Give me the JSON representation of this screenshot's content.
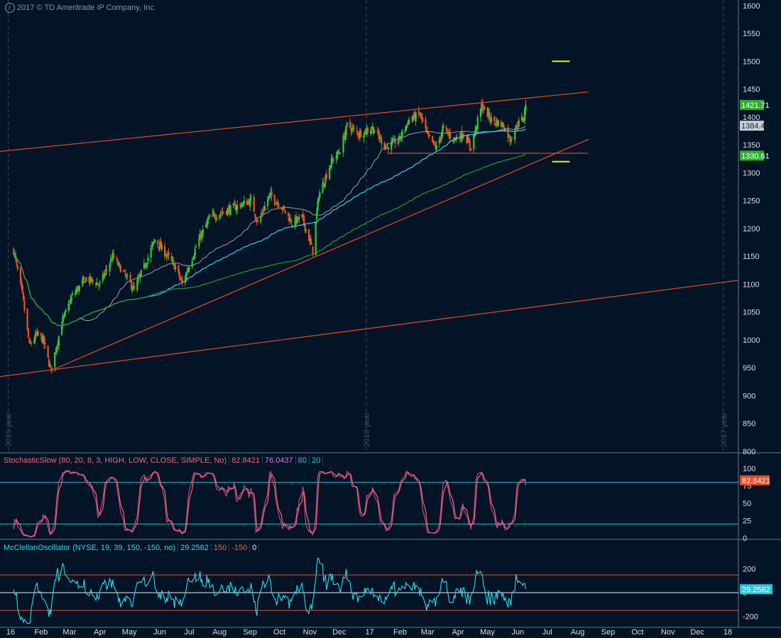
{
  "copyright": "2017 © TD Ameritrade IP Company, Inc.",
  "colors": {
    "background": "#031426",
    "grid": "#3b4a5a",
    "up_candle": "#35c83a",
    "down_candle": "#f0501e",
    "trendline": "#e84a23",
    "yellow_marker": "#f3f000",
    "sma_gray": "#8b8b8b",
    "sma_cyan": "#34d2f0",
    "sma_green": "#2a9d2a",
    "stoch_k": "#e0509a",
    "stoch_d": "#f06a6a",
    "level_cyan": "#2ab8c8",
    "mcclellan": "#38d8ea",
    "level_red": "#e84a23",
    "badge_green": "#2db02d",
    "badge_red": "#e84a23",
    "badge_cyan": "#2ec8dc"
  },
  "x_axis": {
    "labels": [
      "16",
      "Feb",
      "Mar",
      "Apr",
      "May",
      "Jun",
      "Jul",
      "Aug",
      "Sep",
      "Oct",
      "Nov",
      "Dec",
      "17",
      "Feb",
      "Mar",
      "Apr",
      "May",
      "Jun",
      "Jul",
      "Aug",
      "Sep",
      "Oct",
      "Nov",
      "Dec",
      "18"
    ]
  },
  "period_labels": [
    "2015 year",
    "2016 year",
    "2017 year"
  ],
  "price_badges": [
    "1421.71",
    "1384.46",
    "1330.61"
  ],
  "stoch_legend": {
    "name": "StochasticSlow (80, 20, 8, 3, HIGH, LOW, CLOSE, SIMPLE, No)",
    "k": "82.8421",
    "d": "76.0437",
    "ob": "80",
    "os": "20"
  },
  "stoch_badge": "82.8421",
  "mco_legend": {
    "name": "McClellanOscillator (NYSE, 19, 39, 150, -150, no)",
    "value": "29.2562",
    "upper": "150",
    "lower": "-150",
    "zero": "0"
  },
  "mco_badge": "29.2562",
  "chart_data": [
    {
      "type": "candlestick",
      "title": "",
      "xlabel": "",
      "ylabel": "",
      "y_ticks": [
        "1600",
        "1550",
        "1500",
        "1450",
        "1400",
        "1350",
        "1300",
        "1250",
        "1200",
        "1150",
        "1100",
        "1050",
        "1000",
        "950",
        "900",
        "850",
        "800"
      ],
      "ylim": [
        800,
        1610
      ],
      "last_close": 1421.71,
      "close_series": [
        {
          "date": "2016-01-04",
          "value": 1160
        },
        {
          "date": "2016-01-13",
          "value": 1080
        },
        {
          "date": "2016-01-20",
          "value": 990
        },
        {
          "date": "2016-01-28",
          "value": 1010
        },
        {
          "date": "2016-02-03",
          "value": 1000
        },
        {
          "date": "2016-02-11",
          "value": 945
        },
        {
          "date": "2016-02-22",
          "value": 1030
        },
        {
          "date": "2016-03-04",
          "value": 1080
        },
        {
          "date": "2016-03-18",
          "value": 1110
        },
        {
          "date": "2016-04-01",
          "value": 1100
        },
        {
          "date": "2016-04-14",
          "value": 1150
        },
        {
          "date": "2016-04-25",
          "value": 1120
        },
        {
          "date": "2016-05-06",
          "value": 1090
        },
        {
          "date": "2016-05-18",
          "value": 1140
        },
        {
          "date": "2016-05-27",
          "value": 1180
        },
        {
          "date": "2016-06-09",
          "value": 1150
        },
        {
          "date": "2016-06-17",
          "value": 1130
        },
        {
          "date": "2016-06-24",
          "value": 1100
        },
        {
          "date": "2016-06-30",
          "value": 1130
        },
        {
          "date": "2016-07-11",
          "value": 1180
        },
        {
          "date": "2016-07-22",
          "value": 1220
        },
        {
          "date": "2016-08-05",
          "value": 1230
        },
        {
          "date": "2016-08-19",
          "value": 1240
        },
        {
          "date": "2016-09-02",
          "value": 1250
        },
        {
          "date": "2016-09-09",
          "value": 1210
        },
        {
          "date": "2016-09-21",
          "value": 1260
        },
        {
          "date": "2016-10-03",
          "value": 1240
        },
        {
          "date": "2016-10-14",
          "value": 1210
        },
        {
          "date": "2016-10-24",
          "value": 1220
        },
        {
          "date": "2016-11-04",
          "value": 1160
        },
        {
          "date": "2016-11-10",
          "value": 1260
        },
        {
          "date": "2016-11-23",
          "value": 1320
        },
        {
          "date": "2016-12-02",
          "value": 1340
        },
        {
          "date": "2016-12-09",
          "value": 1385
        },
        {
          "date": "2016-12-21",
          "value": 1370
        },
        {
          "date": "2017-01-04",
          "value": 1380
        },
        {
          "date": "2017-01-18",
          "value": 1345
        },
        {
          "date": "2017-01-31",
          "value": 1360
        },
        {
          "date": "2017-02-10",
          "value": 1395
        },
        {
          "date": "2017-02-21",
          "value": 1405
        },
        {
          "date": "2017-03-01",
          "value": 1365
        },
        {
          "date": "2017-03-10",
          "value": 1345
        },
        {
          "date": "2017-03-17",
          "value": 1380
        },
        {
          "date": "2017-03-27",
          "value": 1360
        },
        {
          "date": "2017-04-07",
          "value": 1370
        },
        {
          "date": "2017-04-14",
          "value": 1345
        },
        {
          "date": "2017-04-25",
          "value": 1420
        },
        {
          "date": "2017-05-05",
          "value": 1395
        },
        {
          "date": "2017-05-17",
          "value": 1385
        },
        {
          "date": "2017-05-24",
          "value": 1360
        },
        {
          "date": "2017-05-31",
          "value": 1385
        },
        {
          "date": "2017-06-07",
          "value": 1400
        },
        {
          "date": "2017-06-09",
          "value": 1421.71
        }
      ],
      "moving_averages": [
        {
          "color_key": "sma_gray",
          "last": 1384.46
        },
        {
          "color_key": "sma_cyan",
          "last": 1384.46
        },
        {
          "color_key": "sma_green",
          "last": 1330.61
        }
      ],
      "trendlines": [
        {
          "from": {
            "date": "2015-12-03",
            "value": 1335
          },
          "to": {
            "date": "2017-08-12",
            "value": 1445
          }
        },
        {
          "from": {
            "date": "2016-02-11",
            "value": 945
          },
          "to": {
            "date": "2017-08-12",
            "value": 1360
          }
        },
        {
          "from": {
            "date": "2015-12-03",
            "value": 930
          },
          "to": {
            "date": "2018-01-20",
            "value": 1107
          }
        },
        {
          "from": {
            "date": "2017-01-19",
            "value": 1335
          },
          "to": {
            "date": "2017-08-12",
            "value": 1335
          }
        }
      ],
      "markers": [
        {
          "from": "2017-07-06",
          "to": "2017-07-24",
          "value": 1500
        },
        {
          "from": "2017-07-06",
          "to": "2017-07-24",
          "value": 1320
        }
      ]
    },
    {
      "type": "line",
      "title": "StochasticSlow",
      "ylim": [
        0,
        100
      ],
      "y_ticks": [
        "100",
        "75",
        "50",
        "25",
        "0"
      ],
      "levels": [
        80,
        20
      ],
      "last_k": 82.8421,
      "last_d": 76.0437
    },
    {
      "type": "line",
      "title": "McClellanOscillator",
      "ylim": [
        -280,
        300
      ],
      "y_ticks": [
        "200",
        "0",
        "-200"
      ],
      "levels": [
        150,
        0,
        -150
      ],
      "last": 29.2562
    }
  ]
}
